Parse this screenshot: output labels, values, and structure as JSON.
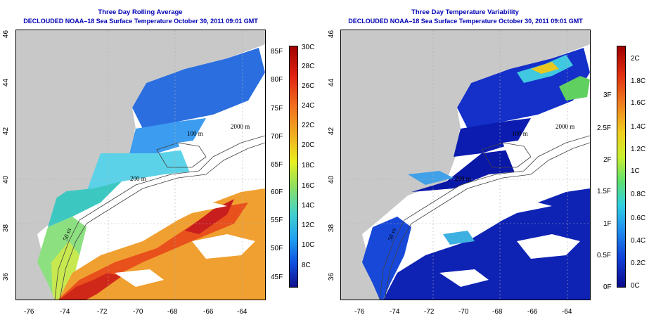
{
  "left_panel": {
    "title": "Three Day Rolling Average",
    "subtitle": "DECLOUDED NOAA–18 Sea Surface Temperature October 30, 2011 09:01 GMT",
    "x_ticks": [
      "-76",
      "-74",
      "-72",
      "-70",
      "-68",
      "-66",
      "-64"
    ],
    "y_ticks": [
      "36",
      "38",
      "40",
      "42",
      "44",
      "46"
    ],
    "contours": [
      "50 m",
      "200 m",
      "100 m",
      "2000 m"
    ],
    "colorbar_c": [
      "30C",
      "28C",
      "26C",
      "24C",
      "22C",
      "20C",
      "18C",
      "16C",
      "14C",
      "12C",
      "10C",
      "8C"
    ],
    "colorbar_f": [
      "85F",
      "80F",
      "75F",
      "70F",
      "65F",
      "60F",
      "55F",
      "50F",
      "45F"
    ]
  },
  "right_panel": {
    "title": "Three Day Temperature Variability",
    "subtitle": "DECLOUDED NOAA–18 Sea Surface Temperature October 30, 2011 09:01 GMT",
    "x_ticks": [
      "-76",
      "-74",
      "-72",
      "-70",
      "-68",
      "-66",
      "-64"
    ],
    "y_ticks": [
      "36",
      "38",
      "40",
      "42",
      "44",
      "46"
    ],
    "contours": [
      "50 m",
      "200 m",
      "100 m",
      "2000 m"
    ],
    "colorbar_c": [
      "2C",
      "1.8C",
      "1.6C",
      "1.4C",
      "1.2C",
      "1C",
      "0.8C",
      "0.6C",
      "0.4C",
      "0.2C",
      "0C"
    ],
    "colorbar_f": [
      "3F",
      "2.5F",
      "2F",
      "1.5F",
      "1F",
      "0.5F",
      "0F"
    ]
  },
  "colors": {
    "land": "#c8c8c8",
    "title": "#0000b4",
    "sst_cold": "#1020a0",
    "sst_warm": "#b40000"
  }
}
